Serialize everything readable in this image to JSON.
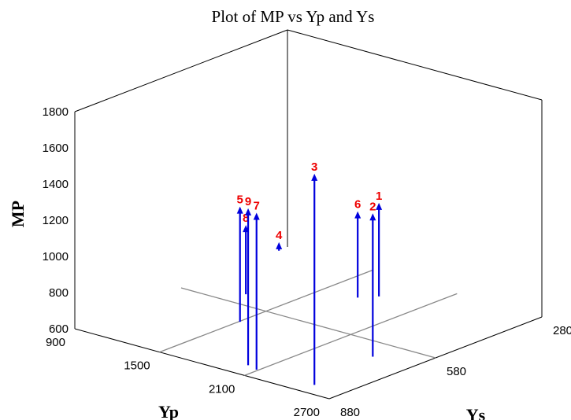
{
  "chart_data": {
    "type": "scatter3d",
    "title": "Plot of MP vs Yp and Ys",
    "xlabel": "Yp",
    "ylabel": "Ys",
    "zlabel": "MP",
    "xlim": [
      900,
      2700
    ],
    "ylim": [
      280,
      880
    ],
    "zlim": [
      600,
      1800
    ],
    "x_ticks": [
      "900",
      "1500",
      "2100",
      "2700"
    ],
    "y_ticks": [
      "280",
      "580",
      "880"
    ],
    "z_ticks": [
      "600",
      "800",
      "1000",
      "1200",
      "1400",
      "1600",
      "1800"
    ],
    "points": [
      {
        "label": "1",
        "yp": 1808,
        "ys": 384,
        "mp": 1100
      },
      {
        "label": "2",
        "yp": 2429,
        "ys": 649,
        "mp": 1375
      },
      {
        "label": "3",
        "yp": 2490,
        "ys": 838,
        "mp": 1750
      },
      {
        "label": "4",
        "yp": 905,
        "ys": 306,
        "mp": 630
      },
      {
        "label": "5",
        "yp": 1507,
        "ys": 656,
        "mp": 1220
      },
      {
        "label": "6",
        "yp": 1733,
        "ys": 414,
        "mp": 1060
      },
      {
        "label": "7",
        "yp": 2088,
        "ys": 841,
        "mp": 1450
      },
      {
        "label": "8",
        "yp": 1235,
        "ys": 531,
        "mp": 965
      },
      {
        "label": "9",
        "yp": 2006,
        "ys": 832,
        "mp": 1450
      }
    ],
    "colors": {
      "stem": "#0000dd",
      "label": "#ee0000",
      "grid": "#888888",
      "frame": "#000000"
    },
    "grid": true
  }
}
